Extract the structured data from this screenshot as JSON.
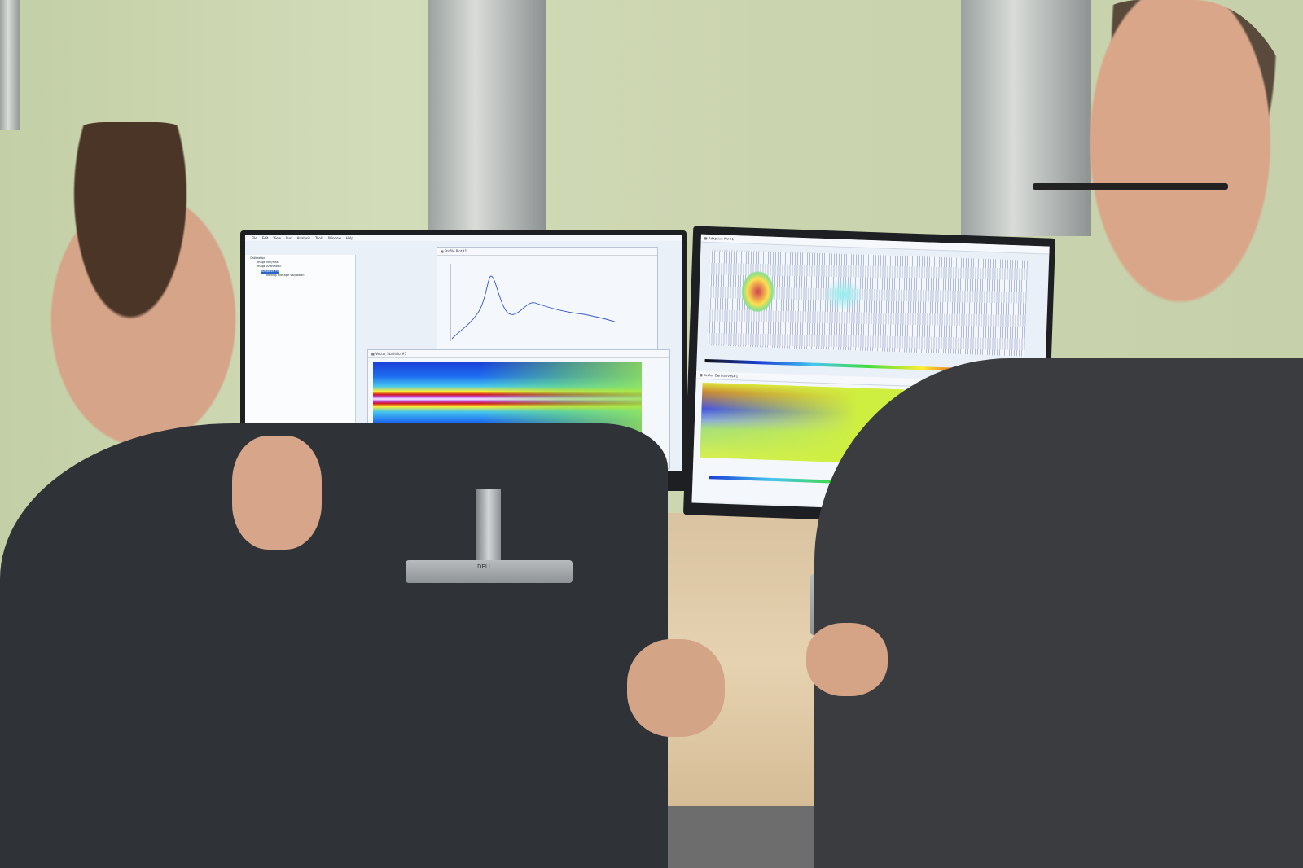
{
  "scene": {
    "description_colors": {
      "wall": "#c9d3b0",
      "desk": "#dfc9a6",
      "suit": "#2f3236",
      "screen_bg": "#e9f0f7",
      "jet_accent": "#d2161a"
    }
  },
  "left_monitor": {
    "menu": [
      "File",
      "Edit",
      "View",
      "Run",
      "Analysis",
      "Tools",
      "Window",
      "Help"
    ],
    "tree_items": [
      "Calibration",
      "Image Min/Max",
      "Image Arithmetic",
      "Adaptive PIV",
      "Moving Average Validation"
    ],
    "profile_window": {
      "title": "Profile Plot#1",
      "icon": "chart-icon"
    },
    "stats_window": {
      "title": "Vector Statistics#1",
      "icon": "grid-icon"
    }
  },
  "right_monitor": {
    "piv_window": {
      "title": "Adaptive PIV#1",
      "icon": "grid-icon"
    },
    "deriv_window": {
      "title": "Scalar Derivatives#1",
      "icon": "grid-icon"
    }
  },
  "monitor_brand": "DELL"
}
